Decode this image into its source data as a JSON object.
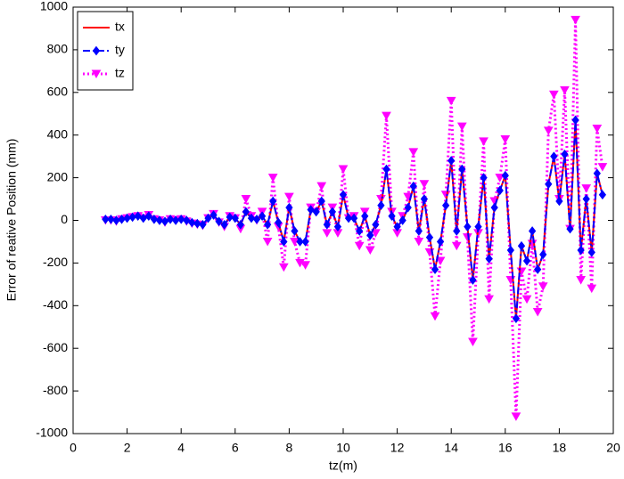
{
  "chart_data": {
    "type": "line",
    "xlabel": "tz(m)",
    "ylabel": "Error of reative Position (mm)",
    "xlim": [
      0,
      20
    ],
    "xticks": [
      0,
      2,
      4,
      6,
      8,
      10,
      12,
      14,
      16,
      18,
      20
    ],
    "ylim": [
      -1000,
      1000
    ],
    "yticks": [
      -1000,
      -800,
      -600,
      -400,
      -200,
      0,
      200,
      400,
      600,
      800,
      1000
    ],
    "grid": false,
    "legend": "upper left",
    "x": [
      1.2,
      1.4,
      1.6,
      1.8,
      2.0,
      2.2,
      2.4,
      2.6,
      2.8,
      3.0,
      3.2,
      3.4,
      3.6,
      3.8,
      4.0,
      4.2,
      4.4,
      4.6,
      4.8,
      5.0,
      5.2,
      5.4,
      5.6,
      5.8,
      6.0,
      6.2,
      6.4,
      6.6,
      6.8,
      7.0,
      7.2,
      7.4,
      7.6,
      7.8,
      8.0,
      8.2,
      8.4,
      8.6,
      8.8,
      9.0,
      9.2,
      9.4,
      9.6,
      9.8,
      10.0,
      10.2,
      10.4,
      10.6,
      10.8,
      11.0,
      11.2,
      11.4,
      11.6,
      11.8,
      12.0,
      12.2,
      12.4,
      12.6,
      12.8,
      13.0,
      13.2,
      13.4,
      13.6,
      13.8,
      14.0,
      14.2,
      14.4,
      14.6,
      14.8,
      15.0,
      15.2,
      15.4,
      15.6,
      15.8,
      16.0,
      16.2,
      16.4,
      16.6,
      16.8,
      17.0,
      17.2,
      17.4,
      17.6,
      17.8,
      18.0,
      18.2,
      18.4,
      18.6,
      18.8,
      19.0,
      19.2,
      19.4,
      19.6
    ],
    "series": [
      {
        "name": "tx",
        "color": "#ff0000",
        "values": [
          5,
          5,
          0,
          5,
          10,
          15,
          20,
          10,
          20,
          5,
          0,
          -5,
          5,
          0,
          5,
          0,
          -10,
          -15,
          -20,
          10,
          25,
          -5,
          -20,
          15,
          10,
          -20,
          40,
          10,
          5,
          20,
          -20,
          90,
          -10,
          -100,
          60,
          -50,
          -100,
          -100,
          50,
          40,
          90,
          -20,
          40,
          -30,
          120,
          10,
          10,
          -50,
          20,
          -70,
          -20,
          70,
          240,
          20,
          -30,
          0,
          60,
          160,
          -50,
          100,
          -80,
          -230,
          -100,
          70,
          280,
          -50,
          240,
          -30,
          -280,
          -30,
          200,
          -180,
          60,
          140,
          210,
          -140,
          -460,
          -120,
          -190,
          -50,
          -230,
          -160,
          170,
          300,
          90,
          310,
          -40,
          470,
          -140,
          100,
          -150,
          220,
          120
        ]
      },
      {
        "name": "ty",
        "color": "#0000ff",
        "values": [
          5,
          5,
          0,
          5,
          10,
          15,
          20,
          10,
          20,
          5,
          0,
          -5,
          5,
          0,
          5,
          0,
          -10,
          -15,
          -20,
          10,
          25,
          -5,
          -20,
          15,
          10,
          -20,
          40,
          10,
          5,
          20,
          -20,
          90,
          -10,
          -100,
          60,
          -50,
          -100,
          -100,
          50,
          40,
          90,
          -20,
          40,
          -30,
          120,
          10,
          10,
          -50,
          20,
          -70,
          -20,
          70,
          240,
          20,
          -30,
          0,
          60,
          160,
          -50,
          100,
          -80,
          -230,
          -100,
          70,
          280,
          -50,
          240,
          -30,
          -280,
          -30,
          200,
          -180,
          60,
          140,
          210,
          -140,
          -460,
          -120,
          -190,
          -50,
          -230,
          -160,
          170,
          300,
          90,
          310,
          -40,
          470,
          -140,
          100,
          -150,
          220,
          120
        ]
      },
      {
        "name": "tz",
        "color": "#ff00ff",
        "values": [
          0,
          0,
          -5,
          5,
          10,
          15,
          20,
          10,
          25,
          5,
          0,
          -10,
          5,
          0,
          5,
          -5,
          -15,
          -20,
          -25,
          10,
          30,
          -10,
          -30,
          20,
          10,
          -40,
          100,
          20,
          0,
          40,
          -100,
          200,
          -30,
          -220,
          110,
          -100,
          -200,
          -210,
          60,
          40,
          160,
          -60,
          60,
          -60,
          240,
          10,
          20,
          -120,
          40,
          -140,
          -60,
          100,
          490,
          40,
          -60,
          20,
          110,
          320,
          -100,
          170,
          -150,
          -450,
          -190,
          120,
          560,
          -120,
          440,
          -80,
          -570,
          -60,
          370,
          -370,
          90,
          200,
          380,
          -280,
          -920,
          -240,
          -370,
          -110,
          -430,
          -310,
          420,
          590,
          100,
          610,
          -40,
          940,
          -280,
          150,
          -320,
          430,
          250
        ]
      }
    ]
  }
}
